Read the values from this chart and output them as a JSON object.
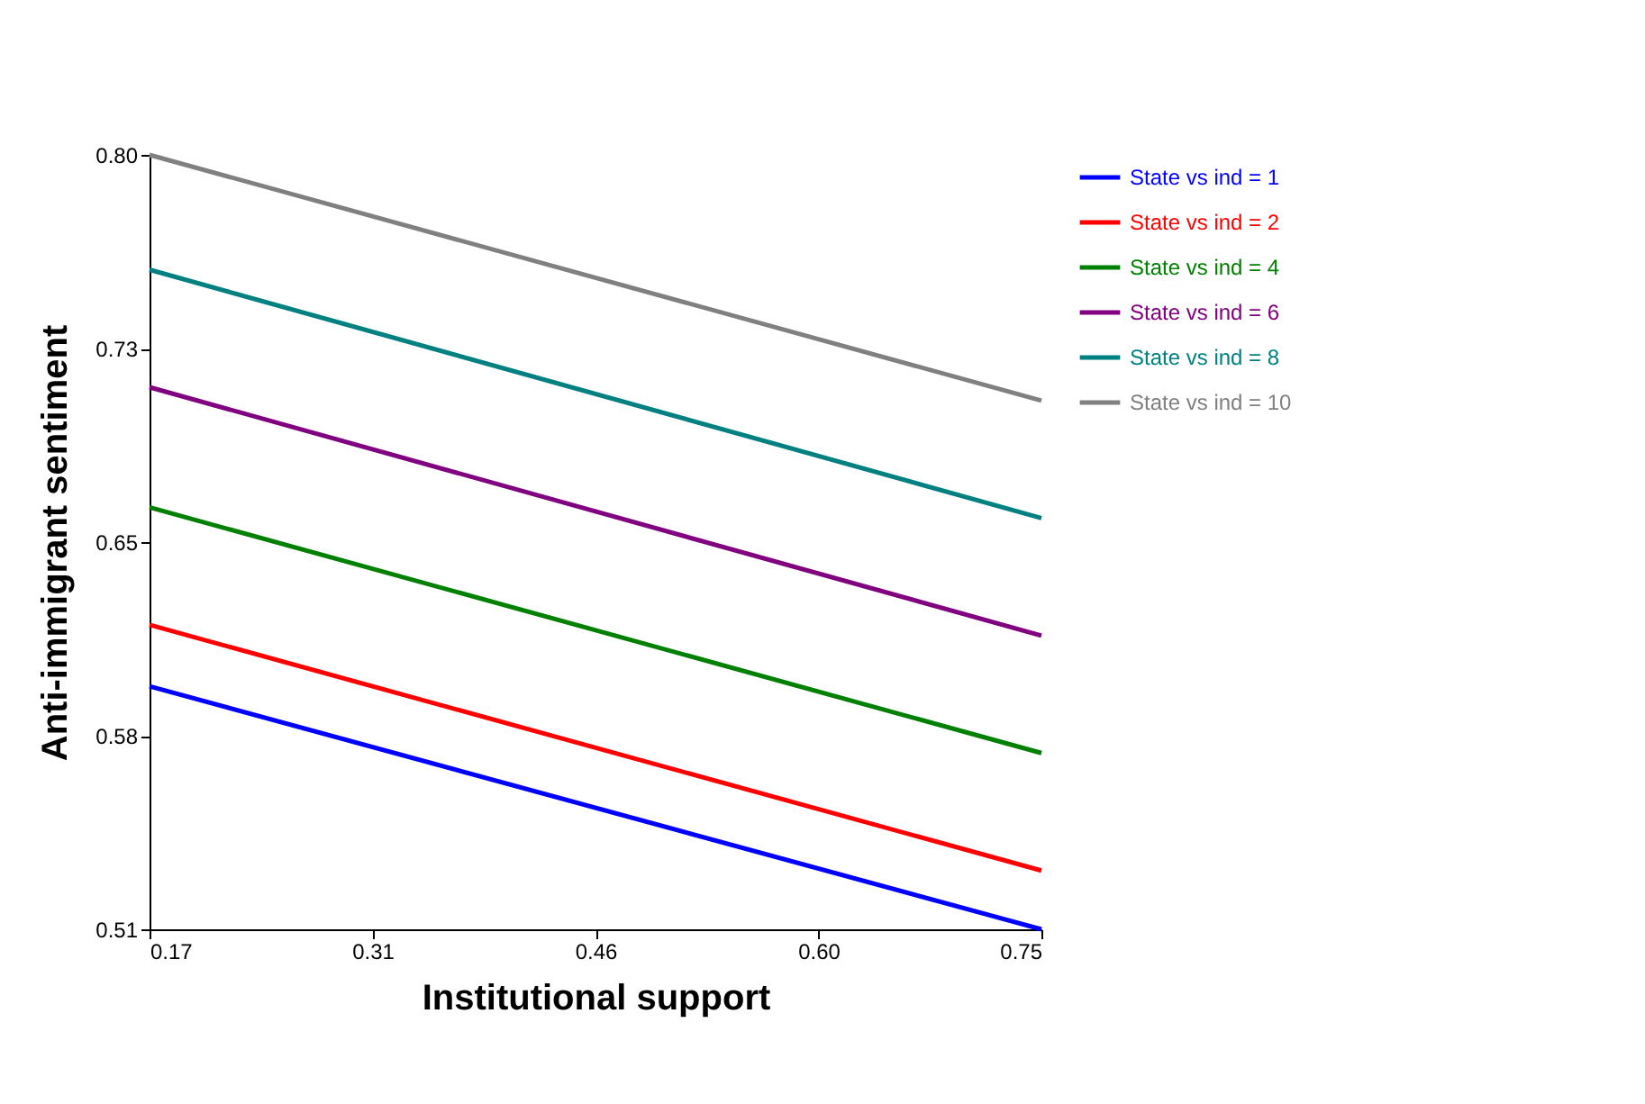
{
  "chart_data": {
    "type": "line",
    "xlabel": "Institutional support",
    "ylabel": "Anti-immigrant sentiment",
    "x": [
      0.17,
      0.75
    ],
    "series": [
      {
        "name": "State vs ind = 1",
        "color": "#0000ff",
        "values": [
          0.601,
          0.51
        ]
      },
      {
        "name": "State vs ind = 2",
        "color": "#ff0000",
        "values": [
          0.624,
          0.532
        ]
      },
      {
        "name": "State vs ind = 4",
        "color": "#008000",
        "values": [
          0.668,
          0.576
        ]
      },
      {
        "name": "State vs ind = 6",
        "color": "#800080",
        "values": [
          0.713,
          0.62
        ]
      },
      {
        "name": "State vs ind = 8",
        "color": "#008080",
        "values": [
          0.757,
          0.664
        ]
      },
      {
        "name": "State vs ind = 10",
        "color": "#808080",
        "values": [
          0.8,
          0.708
        ]
      }
    ],
    "xlim": [
      0.17,
      0.75
    ],
    "xticks": [
      0.17,
      {
        "value": 0.315,
        "label": "0.31"
      },
      0.46,
      {
        "value": 0.605,
        "label": "0.60"
      },
      0.75
    ],
    "ylim": [
      0.51,
      0.8
    ],
    "yticks": [
      0.51,
      {
        "value": 0.5825,
        "label": "0.58"
      },
      {
        "value": 0.655,
        "label": "0.65"
      },
      {
        "value": 0.7275,
        "label": "0.73"
      },
      {
        "value": 0.8,
        "label": "0.80"
      }
    ],
    "grid": false,
    "legend": "right",
    "marker": "none",
    "line_style": "solid"
  }
}
